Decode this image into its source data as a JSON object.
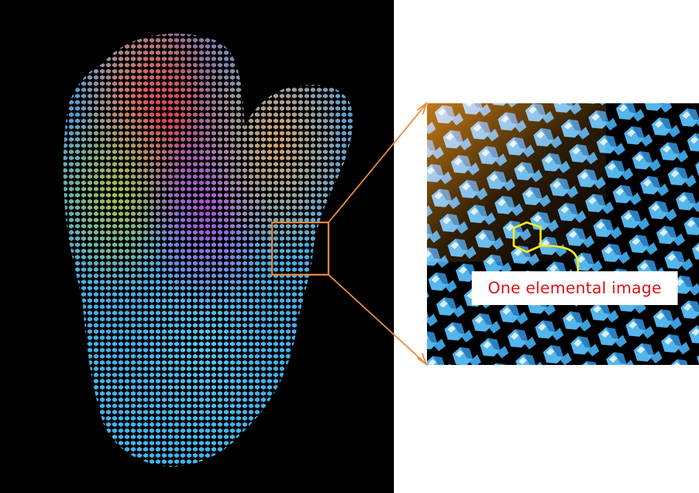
{
  "annotation": {
    "label": "One elemental image"
  },
  "colors": {
    "background_left": "#000000",
    "background_right": "#ffffff",
    "callout_box": "#ed8b3a",
    "hexagon_outline": "#f2ec22",
    "label_text": "#e0141e",
    "lens_blue": "#4fb8ef",
    "lens_orange": "#e8921c"
  },
  "icons": {
    "highlight_shape": "hexagon-outline"
  }
}
